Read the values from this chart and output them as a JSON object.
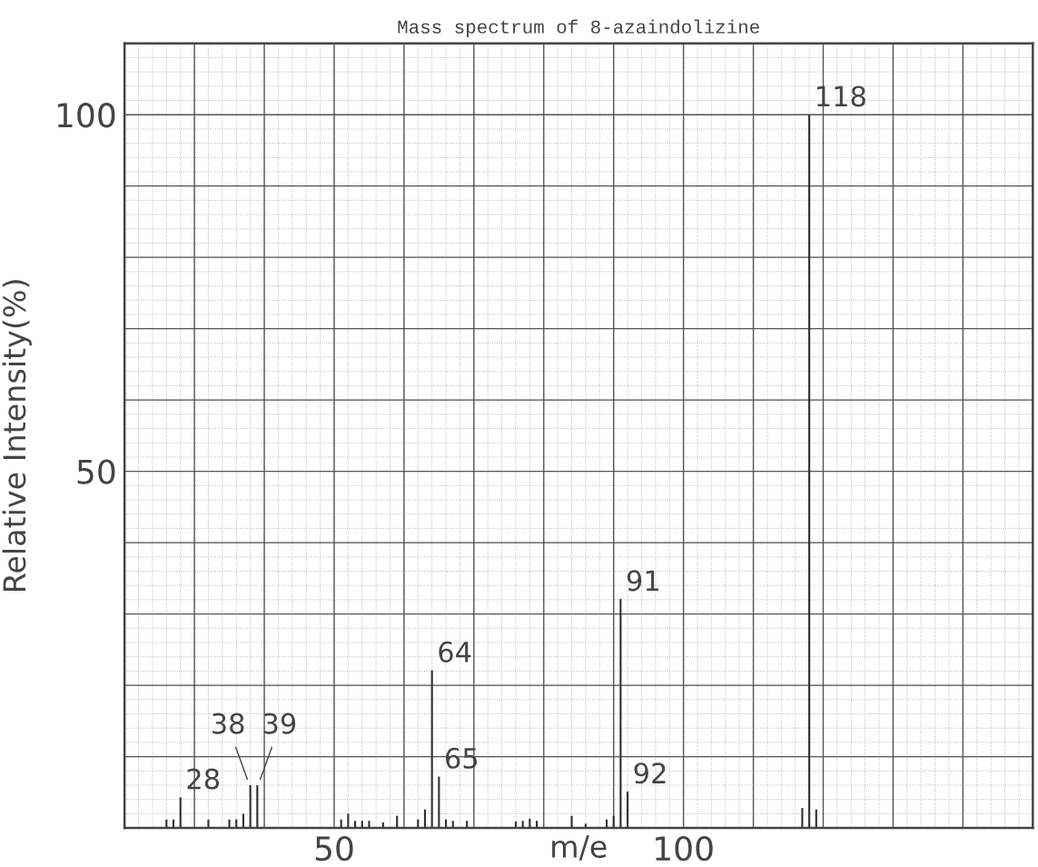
{
  "chart_data": {
    "type": "bar",
    "title": "Mass spectrum of 8-azaindolizine",
    "xlabel": "m/e",
    "ylabel": "Relative Intensity(%)",
    "x": [
      26,
      27,
      28,
      32,
      35,
      36,
      37,
      38,
      39,
      51,
      52,
      53,
      54,
      55,
      57,
      59,
      62,
      63,
      64,
      65,
      66,
      67,
      69,
      76,
      77,
      78,
      79,
      84,
      86,
      89,
      90,
      91,
      92,
      117,
      118,
      119
    ],
    "values": [
      1.2,
      1.2,
      4.3,
      1.2,
      1.2,
      1.2,
      2.0,
      6.0,
      6.0,
      1.2,
      2.0,
      1.0,
      1.0,
      1.0,
      0.8,
      1.7,
      1.2,
      2.6,
      22.1,
      7.2,
      1.2,
      1.0,
      1.0,
      0.9,
      1.0,
      1.3,
      1.0,
      1.7,
      0.6,
      1.2,
      1.7,
      32.1,
      5.1,
      2.8,
      100,
      2.6
    ],
    "color": "#333333",
    "xlim": [
      20,
      150
    ],
    "xticks": [
      {
        "value": 20,
        "label": null
      },
      {
        "value": 30,
        "label": null
      },
      {
        "value": 40,
        "label": null
      },
      50,
      {
        "value": 60,
        "label": null
      },
      {
        "value": 70,
        "label": null
      },
      {
        "value": 80,
        "label": null
      },
      {
        "value": 90,
        "label": null
      },
      100,
      {
        "value": 110,
        "label": null
      },
      {
        "value": 120,
        "label": null
      },
      {
        "value": 130,
        "label": null
      },
      {
        "value": 140,
        "label": null
      },
      {
        "value": 150,
        "label": null
      }
    ],
    "ylim": [
      0,
      110
    ],
    "yticks": [
      {
        "value": 0,
        "label": null
      },
      {
        "value": 10,
        "label": null
      },
      {
        "value": 20,
        "label": null
      },
      {
        "value": 30,
        "label": null
      },
      {
        "value": 40,
        "label": null
      },
      50,
      {
        "value": 60,
        "label": null
      },
      {
        "value": 70,
        "label": null
      },
      {
        "value": 80,
        "label": null
      },
      {
        "value": 90,
        "label": null
      },
      100,
      {
        "value": 110,
        "label": null
      }
    ],
    "grid": true,
    "annotations": [
      {
        "text": "28",
        "x": 28,
        "y": 4.3
      },
      {
        "text": "38",
        "x": 38,
        "y": 6.0
      },
      {
        "text": "39",
        "x": 39,
        "y": 6.0
      },
      {
        "text": "64",
        "x": 64,
        "y": 22.1
      },
      {
        "text": "65",
        "x": 65,
        "y": 7.2
      },
      {
        "text": "91",
        "x": 91,
        "y": 32.1
      },
      {
        "text": "92",
        "x": 92,
        "y": 5.1
      },
      {
        "text": "118",
        "x": 118,
        "y": 100
      }
    ]
  }
}
